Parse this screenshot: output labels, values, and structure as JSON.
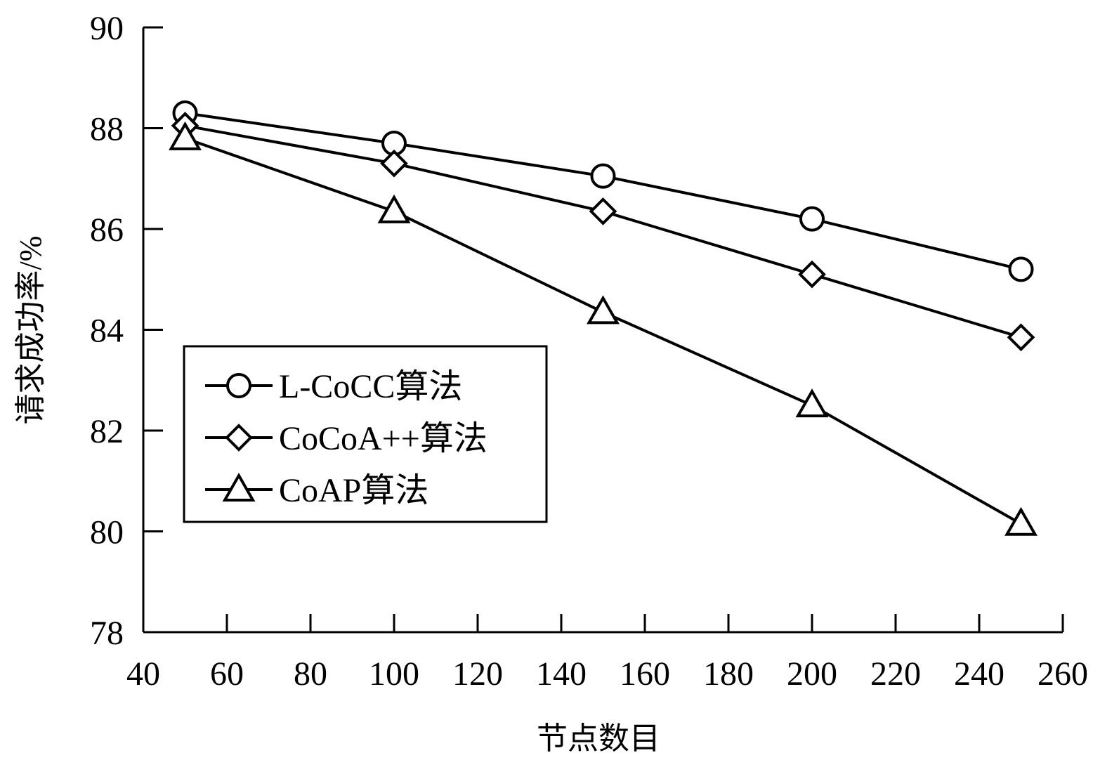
{
  "chart_data": {
    "type": "line",
    "title": "",
    "xlabel": "节点数目",
    "ylabel": "请求成功率/%",
    "xlim": [
      40,
      260
    ],
    "ylim": [
      78,
      90
    ],
    "xticks": [
      40,
      60,
      80,
      100,
      120,
      140,
      160,
      180,
      200,
      220,
      240,
      260
    ],
    "yticks": [
      78,
      80,
      82,
      84,
      86,
      88,
      90
    ],
    "grid": false,
    "legend_position": "center-left",
    "x": [
      50,
      100,
      150,
      200,
      250
    ],
    "series": [
      {
        "name": "L-CoCC算法",
        "marker": "circle",
        "values": [
          88.3,
          87.7,
          87.05,
          86.2,
          85.2
        ]
      },
      {
        "name": "CoCoA++算法",
        "marker": "diamond",
        "values": [
          88.05,
          87.3,
          86.35,
          85.1,
          83.85
        ]
      },
      {
        "name": "CoAP算法",
        "marker": "triangle",
        "values": [
          87.8,
          86.35,
          84.35,
          82.5,
          80.15
        ]
      }
    ],
    "colors": {
      "line": "#000000",
      "marker_fill": "#ffffff"
    }
  }
}
